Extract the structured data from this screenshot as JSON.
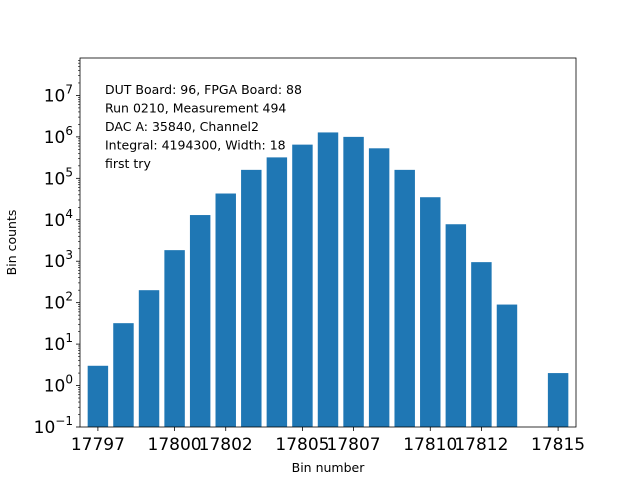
{
  "chart_data": {
    "type": "bar",
    "xlabel": "Bin number",
    "ylabel": "Bin counts",
    "y_scale": "log",
    "ylim": [
      0.1,
      80000000
    ],
    "xlim": [
      17796.3,
      17815.7
    ],
    "x": [
      17797,
      17798,
      17799,
      17800,
      17801,
      17802,
      17803,
      17804,
      17805,
      17806,
      17807,
      17808,
      17809,
      17810,
      17811,
      17812,
      17813,
      17814,
      17815
    ],
    "values": [
      3,
      32,
      200,
      1850,
      13000,
      43000,
      160000,
      320000,
      650000,
      1280000,
      1000000,
      530000,
      160000,
      35000,
      7800,
      950,
      90,
      0.1,
      2
    ],
    "x_ticks": [
      17797,
      17800,
      17802,
      17805,
      17807,
      17810,
      17812,
      17815
    ],
    "x_tick_labels": [
      "17797",
      "17800",
      "17802",
      "17805",
      "17807",
      "17810",
      "17812",
      "17815"
    ],
    "y_ticks": [
      {
        "base": "10",
        "exp": "−1",
        "value": 0.1
      },
      {
        "base": "10",
        "exp": "0",
        "value": 1
      },
      {
        "base": "10",
        "exp": "1",
        "value": 10
      },
      {
        "base": "10",
        "exp": "2",
        "value": 100
      },
      {
        "base": "10",
        "exp": "3",
        "value": 1000
      },
      {
        "base": "10",
        "exp": "4",
        "value": 10000
      },
      {
        "base": "10",
        "exp": "5",
        "value": 100000
      },
      {
        "base": "10",
        "exp": "6",
        "value": 1000000
      },
      {
        "base": "10",
        "exp": "7",
        "value": 10000000
      }
    ],
    "bar_color": "#1f77b4",
    "grid": false,
    "legend": "none",
    "annotation": [
      "DUT Board: 96, FPGA Board: 88",
      "Run 0210, Measurement 494",
      "DAC A: 35840, Channel2",
      "Integral: 4194300, Width: 18",
      "first try"
    ],
    "annotation_placement": "top-left"
  }
}
